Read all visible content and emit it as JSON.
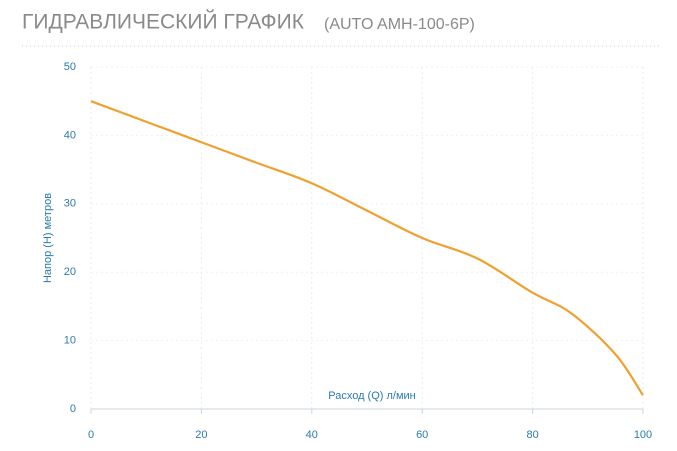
{
  "chart_data": {
    "type": "line",
    "title": "ГИДРАВЛИЧЕСКИЙ ГРАФИК",
    "subtitle": "(AUTO AMH-100-6P)",
    "x_label": "Расход (Q) л/мин",
    "y_label": "Напор (H) метров",
    "x": [
      0,
      10,
      20,
      30,
      40,
      50,
      60,
      70,
      80,
      87,
      95,
      100
    ],
    "series": [
      {
        "name": "AUTO AMH-100-6P",
        "color": "#f0a030",
        "values": [
          45,
          42,
          39,
          36,
          33,
          29,
          25,
          22,
          17,
          14,
          8,
          2
        ]
      }
    ],
    "xlim": [
      0,
      100
    ],
    "xticks": [
      0,
      20,
      40,
      60,
      80,
      100
    ],
    "ylim": [
      0,
      50
    ],
    "yticks": [
      0,
      10,
      20,
      30,
      40,
      50
    ],
    "grid": true
  }
}
